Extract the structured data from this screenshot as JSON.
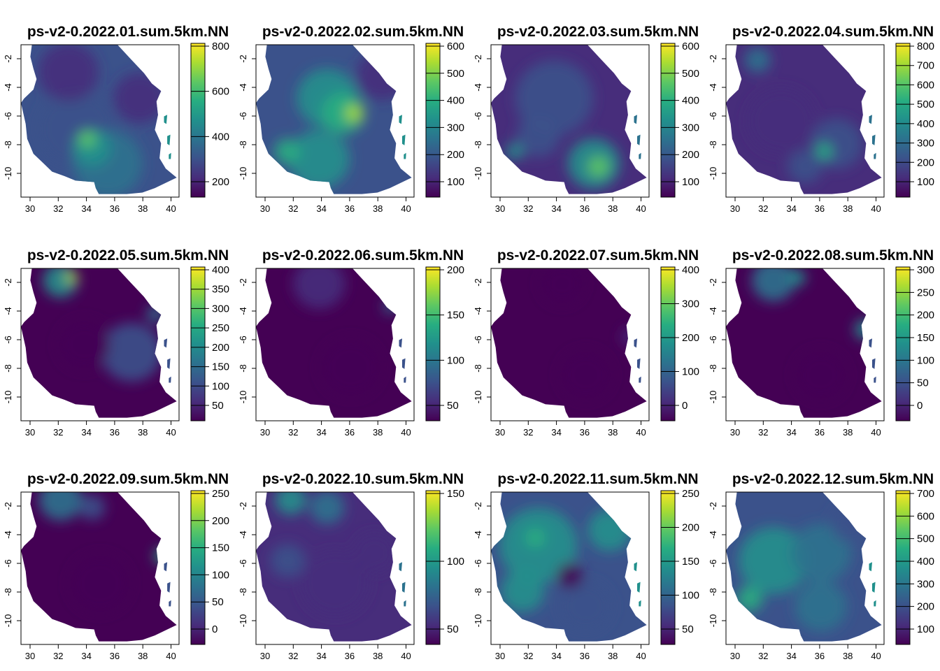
{
  "figure": {
    "type": "raster-map-grid",
    "colormap": [
      "#440154",
      "#472D7B",
      "#3B528B",
      "#2C728E",
      "#21908C",
      "#27AD81",
      "#5DC863",
      "#AADC32",
      "#FDE725"
    ],
    "x_axis_ticks": [
      "30",
      "32",
      "34",
      "36",
      "38",
      "40"
    ],
    "y_axis_ticks": [
      "-2",
      "-4",
      "-6",
      "-8",
      "-10"
    ],
    "panels": [
      {
        "title": "ps-v2-0.2022.01.sum.5km.NN",
        "legend_ticks": [
          "200",
          "400",
          "600",
          "800"
        ]
      },
      {
        "title": "ps-v2-0.2022.02.sum.5km.NN",
        "legend_ticks": [
          "100",
          "200",
          "300",
          "400",
          "500",
          "600"
        ]
      },
      {
        "title": "ps-v2-0.2022.03.sum.5km.NN",
        "legend_ticks": [
          "100",
          "200",
          "300",
          "400",
          "500",
          "600"
        ]
      },
      {
        "title": "ps-v2-0.2022.04.sum.5km.NN",
        "legend_ticks": [
          "100",
          "200",
          "300",
          "400",
          "500",
          "600",
          "700",
          "800"
        ]
      },
      {
        "title": "ps-v2-0.2022.05.sum.5km.NN",
        "legend_ticks": [
          "50",
          "100",
          "150",
          "200",
          "250",
          "300",
          "350",
          "400"
        ]
      },
      {
        "title": "ps-v2-0.2022.06.sum.5km.NN",
        "legend_ticks": [
          "50",
          "100",
          "150",
          "200"
        ]
      },
      {
        "title": "ps-v2-0.2022.07.sum.5km.NN",
        "legend_ticks": [
          "0",
          "100",
          "200",
          "300",
          "400"
        ]
      },
      {
        "title": "ps-v2-0.2022.08.sum.5km.NN",
        "legend_ticks": [
          "0",
          "50",
          "100",
          "150",
          "200",
          "250",
          "300"
        ]
      },
      {
        "title": "ps-v2-0.2022.09.sum.5km.NN",
        "legend_ticks": [
          "0",
          "50",
          "100",
          "150",
          "200",
          "250"
        ]
      },
      {
        "title": "ps-v2-0.2022.10.sum.5km.NN",
        "legend_ticks": [
          "50",
          "100",
          "150"
        ]
      },
      {
        "title": "ps-v2-0.2022.11.sum.5km.NN",
        "legend_ticks": [
          "50",
          "100",
          "150",
          "200",
          "250"
        ]
      },
      {
        "title": "ps-v2-0.2022.12.sum.5km.NN",
        "legend_ticks": [
          "100",
          "200",
          "300",
          "400",
          "500",
          "600",
          "700"
        ]
      }
    ]
  }
}
